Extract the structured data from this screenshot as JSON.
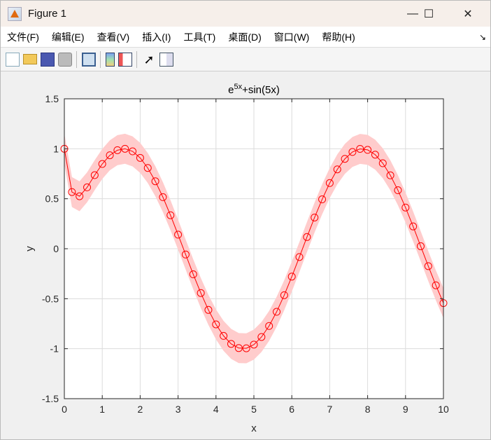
{
  "window": {
    "title": "Figure 1",
    "minimize": "—",
    "maximize": "☐",
    "close": "✕"
  },
  "menu": [
    "文件(F)",
    "编辑(E)",
    "查看(V)",
    "插入(I)",
    "工具(T)",
    "桌面(D)",
    "窗口(W)",
    "帮助(H)"
  ],
  "menu_arrow": "↘",
  "toolbar": [
    "new-file-icon",
    "open-folder-icon",
    "save-icon",
    "print-icon",
    "link-axes-icon",
    "colorbar-icon",
    "legend-icon",
    "pointer-icon",
    "property-inspector-icon"
  ],
  "chart_data": {
    "type": "line",
    "title_base": "e",
    "title_sup": "5x",
    "title_rest": "+sin(5x)",
    "xlabel": "x",
    "ylabel": "y",
    "xlim": [
      0,
      10
    ],
    "ylim": [
      -1.5,
      1.5
    ],
    "xticks": [
      "0",
      "1",
      "2",
      "3",
      "4",
      "5",
      "6",
      "7",
      "8",
      "9",
      "10"
    ],
    "yticks": [
      "-1.5",
      "-1",
      "-0.5",
      "0",
      "0.5",
      "1",
      "1.5"
    ],
    "grid": true,
    "line_color": "#ff0000",
    "band_color": "#ffcccc",
    "band_halfwidth": 0.15,
    "marker": "circle",
    "x": [
      0,
      0.2,
      0.4,
      0.6,
      0.8,
      1,
      1.2,
      1.4,
      1.6,
      1.8,
      2,
      2.2,
      2.4,
      2.6,
      2.8,
      3,
      3.2,
      3.4,
      3.6,
      3.8,
      4,
      4.2,
      4.4,
      4.6,
      4.8,
      5,
      5.2,
      5.4,
      5.6,
      5.8,
      6,
      6.2,
      6.4,
      6.6,
      6.8,
      7,
      7.2,
      7.4,
      7.6,
      7.8,
      8,
      8.2,
      8.4,
      8.6,
      8.8,
      9,
      9.2,
      9.4,
      9.6,
      9.8,
      10
    ],
    "y": [
      1,
      0.567,
      0.525,
      0.614,
      0.736,
      0.848,
      0.935,
      0.986,
      1.0,
      0.974,
      0.909,
      0.808,
      0.675,
      0.516,
      0.335,
      0.141,
      -0.058,
      -0.256,
      -0.443,
      -0.612,
      -0.757,
      -0.872,
      -0.952,
      -0.994,
      -0.996,
      -0.959,
      -0.883,
      -0.773,
      -0.631,
      -0.465,
      -0.279,
      -0.083,
      0.117,
      0.312,
      0.494,
      0.657,
      0.794,
      0.899,
      0.968,
      0.999,
      0.989,
      0.941,
      0.855,
      0.734,
      0.585,
      0.412,
      0.223,
      0.025,
      -0.174,
      -0.366,
      -0.544
    ]
  }
}
